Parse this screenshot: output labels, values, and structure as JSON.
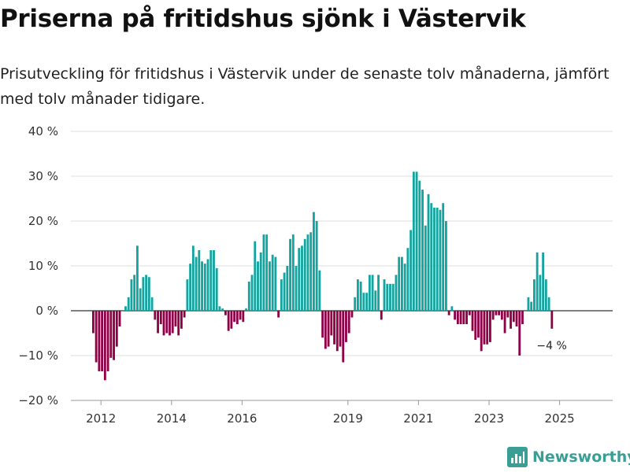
{
  "title": "Priserna på fritidshus sjönk i Västervik",
  "subtitle": "Prisutveckling för fritidshus i Västervik under de senaste tolv månaderna, jämfört med tolv månader tidigare.",
  "brand": "Newsworthy",
  "colors": {
    "positive": "#13a49f",
    "negative": "#8f0046",
    "brand": "#3a9e95"
  },
  "chart_data": {
    "type": "bar",
    "ylim": [
      -20,
      40
    ],
    "yticks": [
      -20,
      -10,
      0,
      10,
      20,
      30,
      40
    ],
    "ytick_labels": [
      "−20 %",
      "−10 %",
      "0 %",
      "10 %",
      "20 %",
      "30 %",
      "40 %"
    ],
    "x_start_year": 2011.75,
    "months_per_step": 1,
    "xticks": [
      2012,
      2014,
      2016,
      2019,
      2021,
      2023,
      2025
    ],
    "xtick_labels": [
      "2012",
      "2014",
      "2016",
      "2019",
      "2021",
      "2023",
      "2025"
    ],
    "values": [
      -5,
      -11.5,
      -13.5,
      -13.5,
      -15.5,
      -13.5,
      -10.5,
      -11,
      -8,
      -3.5,
      0,
      1,
      3,
      7,
      8,
      14.5,
      5,
      7.5,
      8,
      7.5,
      3,
      -2,
      -5,
      -3,
      -5.5,
      -5,
      -5.5,
      -5,
      -3.5,
      -5.5,
      -4,
      -1.5,
      7,
      10.5,
      14.5,
      12,
      13.5,
      11,
      10.5,
      11.5,
      13.5,
      13.5,
      9.5,
      1,
      0.5,
      -1,
      -4.5,
      -4,
      -2.5,
      -3,
      -2,
      -2.5,
      0.5,
      6.5,
      8,
      15.5,
      11,
      13,
      17,
      17,
      11,
      12.5,
      12,
      -1.5,
      7,
      8.5,
      10,
      16,
      17,
      10,
      14,
      14.5,
      16,
      17,
      17.5,
      22,
      20,
      9,
      -6,
      -8.5,
      -8,
      -5.5,
      -7.5,
      -9,
      -8,
      -11.5,
      -7,
      -5,
      -1.5,
      3,
      7,
      6.5,
      4,
      4,
      8,
      8,
      4.5,
      8,
      -2,
      7,
      6,
      6,
      6,
      8,
      12,
      12,
      10.5,
      14,
      18,
      31,
      31,
      29,
      27,
      19,
      26,
      24,
      23,
      23,
      22.5,
      24,
      20,
      -1,
      1,
      -2,
      -3,
      -3,
      -3,
      -3,
      -1,
      -4.5,
      -6.5,
      -6,
      -9,
      -7.5,
      -7.5,
      -7,
      -2,
      -1,
      -1,
      -2,
      -5,
      -1.5,
      -4,
      -2.5,
      -3.5,
      -10,
      -3,
      0,
      3,
      2,
      7,
      13,
      8,
      13,
      7,
      3,
      -4
    ],
    "end_label": "−4 %"
  }
}
